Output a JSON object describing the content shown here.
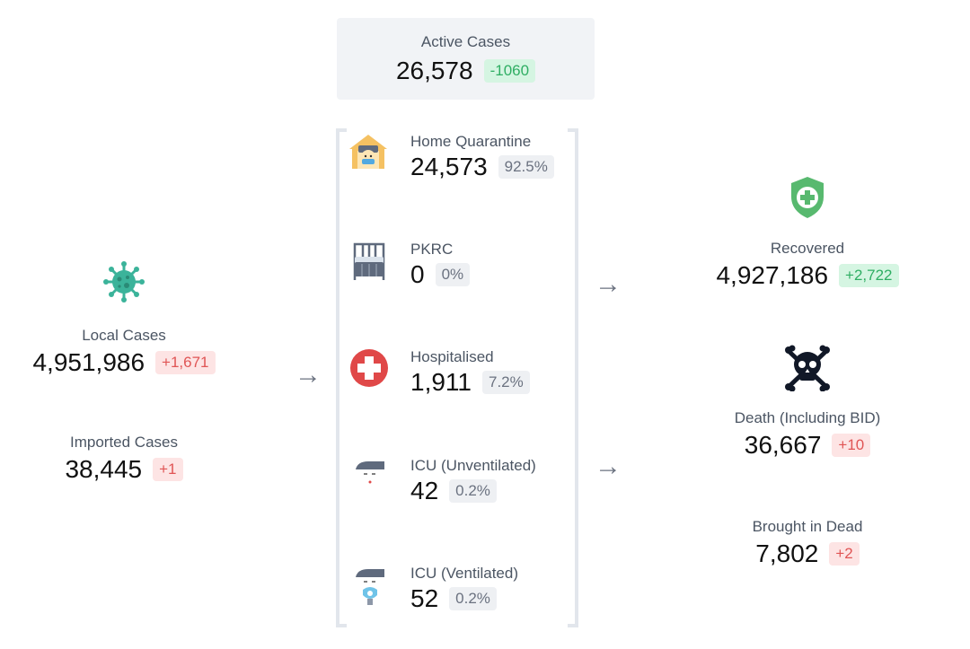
{
  "active": {
    "label": "Active Cases",
    "value": "26,578",
    "change": "-1060"
  },
  "local": {
    "label": "Local Cases",
    "value": "4,951,986",
    "change": "+1,671"
  },
  "imported": {
    "label": "Imported Cases",
    "value": "38,445",
    "change": "+1"
  },
  "breakdown": [
    {
      "label": "Home Quarantine",
      "value": "24,573",
      "percent": "92.5%",
      "icon": "home-quarantine-icon"
    },
    {
      "label": "PKRC",
      "value": "0",
      "percent": "0%",
      "icon": "bed-icon"
    },
    {
      "label": "Hospitalised",
      "value": "1,911",
      "percent": "7.2%",
      "icon": "medical-cross-icon"
    },
    {
      "label": "ICU (Unventilated)",
      "value": "42",
      "percent": "0.2%",
      "icon": "icu-patient-icon"
    },
    {
      "label": "ICU (Ventilated)",
      "value": "52",
      "percent": "0.2%",
      "icon": "ventilated-patient-icon"
    }
  ],
  "recovered": {
    "label": "Recovered",
    "value": "4,927,186",
    "change": "+2,722"
  },
  "deaths": {
    "label": "Death (Including BID)",
    "value": "36,667",
    "change": "+10"
  },
  "bid": {
    "label": "Brought in Dead",
    "value": "7,802",
    "change": "+2"
  },
  "colors": {
    "red": "#e05555",
    "green": "#2fae63",
    "virus": "#3bb39a",
    "shield": "#58b96f",
    "skull": "#111827",
    "cross": "#e04848",
    "house": "#f5c162"
  }
}
